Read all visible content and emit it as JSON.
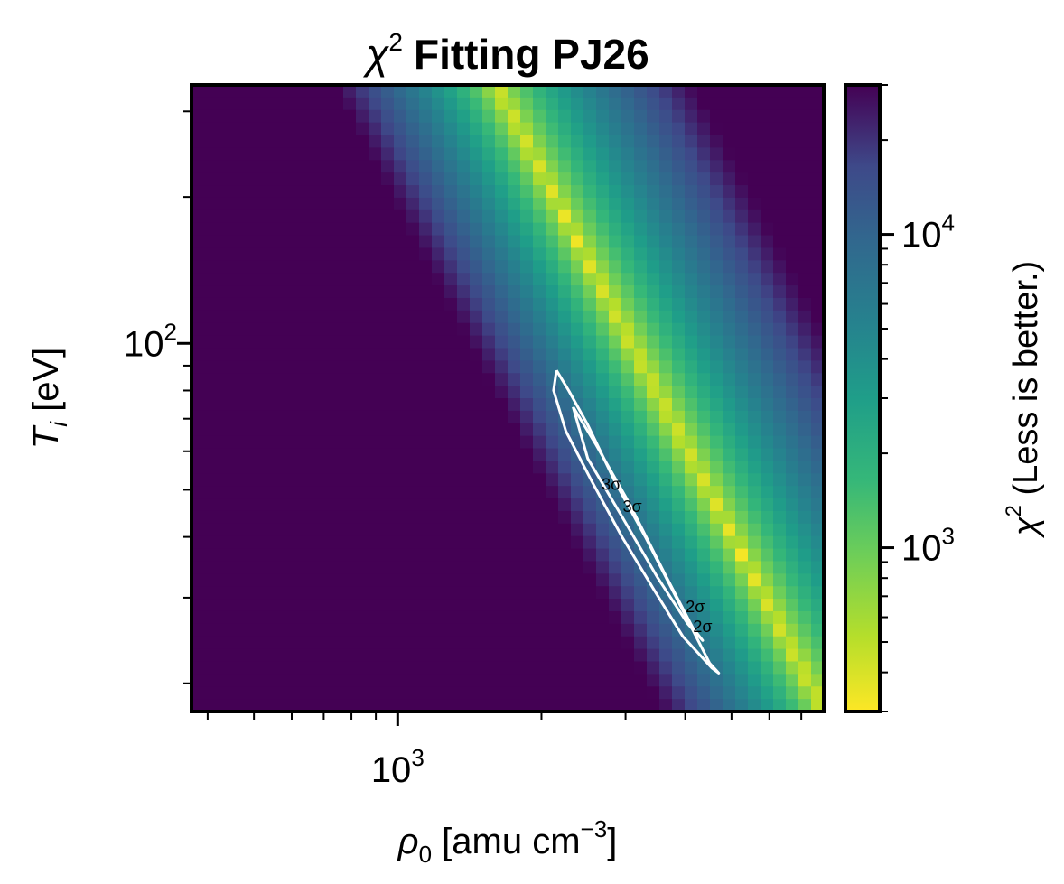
{
  "chart_data": {
    "type": "heatmap",
    "title": "Fitting PJ26",
    "title_symbol": "χ",
    "title_symbol_sup": "2",
    "xlabel": {
      "symbol": "ρ",
      "symbol_sub": "0",
      "text": " [amu cm",
      "sup": "−3",
      "close": "]"
    },
    "ylabel": {
      "symbol": "T",
      "symbol_sub": "i",
      "text": " [eV]"
    },
    "x_scale": "log",
    "y_scale": "log",
    "xlim": [
      370,
      7800
    ],
    "ylim": [
      17.5,
      340
    ],
    "x_major_ticks": [
      {
        "value": 1000,
        "base": "10",
        "exp": "3"
      }
    ],
    "y_major_ticks": [
      {
        "value": 100,
        "base": "10",
        "exp": "2"
      }
    ],
    "colorbar": {
      "label_symbol": "χ",
      "label_sup": "2",
      "label_text": " (Less is better.)",
      "scale": "log",
      "range": [
        300,
        30000
      ],
      "colormap": "viridis_r",
      "ticks": [
        {
          "value": 1000,
          "base": "10",
          "exp": "3"
        },
        {
          "value": 10000,
          "base": "10",
          "exp": "4"
        }
      ]
    },
    "grid": false,
    "valley": {
      "description_points": [
        {
          "rho": 1600,
          "Ti": 340
        },
        {
          "rho": 7800,
          "Ti": 17.5
        }
      ],
      "min_chi2": 300,
      "max_chi2": 30000
    },
    "contour": {
      "color": "#ffffff",
      "level_labels": [
        "3σ",
        "3σ",
        "2σ",
        "2σ"
      ],
      "outline": [
        [
          2150,
          88
        ],
        [
          2280,
          80
        ],
        [
          2500,
          68
        ],
        [
          2850,
          52
        ],
        [
          3300,
          40
        ],
        [
          3900,
          29
        ],
        [
          4500,
          22
        ],
        [
          4700,
          21
        ],
        [
          4550,
          21.5
        ],
        [
          3950,
          25
        ],
        [
          3450,
          31
        ],
        [
          2950,
          40
        ],
        [
          2550,
          52
        ],
        [
          2250,
          66
        ],
        [
          2120,
          80
        ],
        [
          2150,
          88
        ]
      ],
      "inner_outline": [
        [
          2330,
          74
        ],
        [
          2600,
          62
        ],
        [
          3050,
          47
        ],
        [
          3600,
          34
        ],
        [
          4150,
          26
        ],
        [
          4350,
          24.5
        ],
        [
          4050,
          26.5
        ],
        [
          3500,
          33
        ],
        [
          2950,
          44
        ],
        [
          2500,
          58
        ],
        [
          2330,
          74
        ]
      ]
    }
  }
}
